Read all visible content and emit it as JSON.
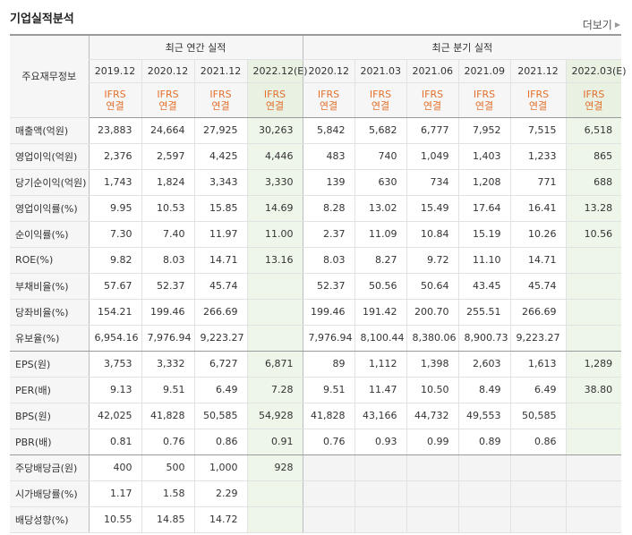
{
  "header": {
    "title": "기업실적분석",
    "more_label": "더보기"
  },
  "table": {
    "row_header_label": "주요재무정보",
    "annual_group_label": "최근 연간 실적",
    "quarter_group_label": "최근 분기 실적",
    "annual_dates": [
      "2019.12",
      "2020.12",
      "2021.12",
      "2022.12(E)"
    ],
    "quarter_dates": [
      "2020.12",
      "2021.03",
      "2021.06",
      "2021.09",
      "2021.12",
      "2022.03(E)"
    ],
    "ifrs_top": "IFRS",
    "ifrs_bottom": "연결",
    "rows": [
      {
        "label": "매출액(억원)",
        "annual": [
          "23,883",
          "24,664",
          "27,925",
          "30,263"
        ],
        "quarter": [
          "5,842",
          "5,682",
          "6,777",
          "7,952",
          "7,515",
          "6,518"
        ]
      },
      {
        "label": "영업이익(억원)",
        "annual": [
          "2,376",
          "2,597",
          "4,425",
          "4,446"
        ],
        "quarter": [
          "483",
          "740",
          "1,049",
          "1,403",
          "1,233",
          "865"
        ]
      },
      {
        "label": "당기순이익(억원)",
        "annual": [
          "1,743",
          "1,824",
          "3,343",
          "3,330"
        ],
        "quarter": [
          "139",
          "630",
          "734",
          "1,208",
          "771",
          "688"
        ]
      },
      {
        "label": "영업이익률(%)",
        "annual": [
          "9.95",
          "10.53",
          "15.85",
          "14.69"
        ],
        "quarter": [
          "8.28",
          "13.02",
          "15.49",
          "17.64",
          "16.41",
          "13.28"
        ]
      },
      {
        "label": "순이익률(%)",
        "annual": [
          "7.30",
          "7.40",
          "11.97",
          "11.00"
        ],
        "quarter": [
          "2.37",
          "11.09",
          "10.84",
          "15.19",
          "10.26",
          "10.56"
        ]
      },
      {
        "label": "ROE(%)",
        "annual": [
          "9.82",
          "8.03",
          "14.71",
          "13.16"
        ],
        "quarter": [
          "8.03",
          "8.27",
          "9.72",
          "11.10",
          "14.71",
          ""
        ]
      },
      {
        "label": "부채비율(%)",
        "annual": [
          "57.67",
          "52.37",
          "45.74",
          ""
        ],
        "quarter": [
          "52.37",
          "50.56",
          "50.64",
          "43.45",
          "45.74",
          ""
        ]
      },
      {
        "label": "당좌비율(%)",
        "annual": [
          "154.21",
          "199.46",
          "266.69",
          ""
        ],
        "quarter": [
          "199.46",
          "191.42",
          "200.70",
          "255.51",
          "266.69",
          ""
        ]
      },
      {
        "label": "유보율(%)",
        "annual": [
          "6,954.16",
          "7,976.94",
          "9,223.27",
          ""
        ],
        "quarter": [
          "7,976.94",
          "8,100.44",
          "8,380.06",
          "8,900.73",
          "9,223.27",
          ""
        ]
      },
      {
        "label": "EPS(원)",
        "annual": [
          "3,753",
          "3,332",
          "6,727",
          "6,871"
        ],
        "quarter": [
          "89",
          "1,112",
          "1,398",
          "2,603",
          "1,613",
          "1,289"
        ]
      },
      {
        "label": "PER(배)",
        "annual": [
          "9.13",
          "9.51",
          "6.49",
          "7.28"
        ],
        "quarter": [
          "9.51",
          "11.47",
          "10.50",
          "8.49",
          "6.49",
          "38.80"
        ]
      },
      {
        "label": "BPS(원)",
        "annual": [
          "42,025",
          "41,828",
          "50,585",
          "54,928"
        ],
        "quarter": [
          "41,828",
          "43,166",
          "44,732",
          "49,553",
          "50,585",
          ""
        ]
      },
      {
        "label": "PBR(배)",
        "annual": [
          "0.81",
          "0.76",
          "0.86",
          "0.91"
        ],
        "quarter": [
          "0.76",
          "0.93",
          "0.99",
          "0.89",
          "0.86",
          ""
        ]
      },
      {
        "label": "주당배당금(원)",
        "annual": [
          "400",
          "500",
          "1,000",
          "928"
        ],
        "quarter": [
          "",
          "",
          "",
          "",
          "",
          ""
        ]
      },
      {
        "label": "시가배당률(%)",
        "annual": [
          "1.17",
          "1.58",
          "2.29",
          ""
        ],
        "quarter": [
          "",
          "",
          "",
          "",
          "",
          ""
        ]
      },
      {
        "label": "배당성향(%)",
        "annual": [
          "10.55",
          "14.85",
          "14.72",
          ""
        ],
        "quarter": [
          "",
          "",
          "",
          "",
          "",
          ""
        ]
      }
    ]
  },
  "colors": {
    "ifrs_text": "#e3702d",
    "estimate_bg": "#eef6e9",
    "header_bg": "#f6f6f6"
  }
}
